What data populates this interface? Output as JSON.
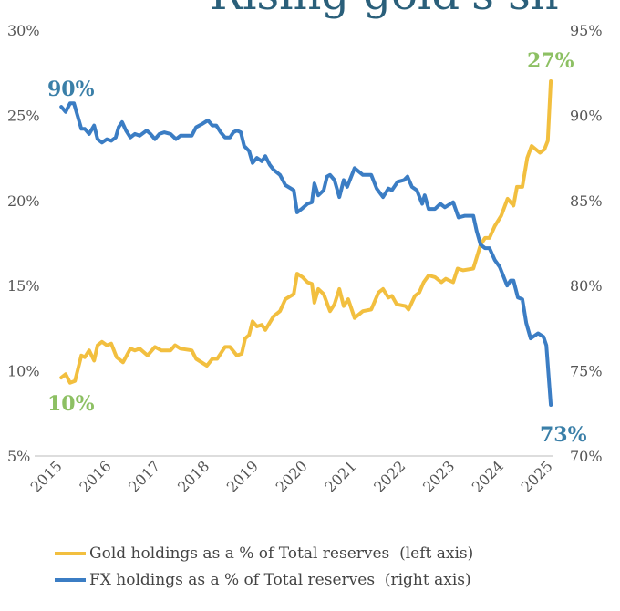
{
  "title": "Rising gold's sh",
  "chart_data": {
    "type": "line",
    "title": "Rising gold's sh",
    "x_range": [
      2015,
      2025
    ],
    "x_ticks": [
      "2015",
      "2016",
      "2017",
      "2018",
      "2019",
      "2020",
      "2021",
      "2022",
      "2023",
      "2024",
      "2025"
    ],
    "left_axis": {
      "range": [
        5,
        30
      ],
      "ticks": [
        "30%",
        "25%",
        "20%",
        "15%",
        "10%",
        "5%"
      ]
    },
    "right_axis": {
      "range": [
        70,
        95
      ],
      "ticks": [
        "95%",
        "90%",
        "85%",
        "80%",
        "75%",
        "70%"
      ]
    },
    "grid": false,
    "legend_position": "bottom",
    "series": [
      {
        "name": "Gold holdings as a % of Total reserves  (left axis)",
        "axis": "left",
        "color": "#f2bf3f",
        "x": [
          2015.04,
          2015.13,
          2015.22,
          2015.32,
          2015.45,
          2015.52,
          2015.61,
          2015.71,
          2015.78,
          2015.87,
          2015.97,
          2016.06,
          2016.17,
          2016.3,
          2016.45,
          2016.54,
          2016.64,
          2016.8,
          2016.95,
          2017.08,
          2017.27,
          2017.36,
          2017.47,
          2017.7,
          2017.79,
          2018.01,
          2018.12,
          2018.22,
          2018.38,
          2018.48,
          2018.62,
          2018.72,
          2018.79,
          2018.87,
          2018.94,
          2019.03,
          2019.13,
          2019.2,
          2019.37,
          2019.5,
          2019.61,
          2019.78,
          2019.85,
          2019.96,
          2020.06,
          2020.15,
          2020.2,
          2020.28,
          2020.39,
          2020.52,
          2020.61,
          2020.71,
          2020.8,
          2020.89,
          2021.02,
          2021.19,
          2021.36,
          2021.51,
          2021.6,
          2021.71,
          2021.78,
          2021.88,
          2022.06,
          2022.12,
          2022.25,
          2022.34,
          2022.43,
          2022.53,
          2022.66,
          2022.79,
          2022.88,
          2023.03,
          2023.12,
          2023.23,
          2023.44,
          2023.59,
          2023.68,
          2023.77,
          2023.88,
          2024.01,
          2024.14,
          2024.26,
          2024.33,
          2024.44,
          2024.54,
          2024.63,
          2024.8,
          2024.89,
          2024.96,
          2025.02
        ],
        "values": [
          9.6,
          9.8,
          9.3,
          9.4,
          10.9,
          10.8,
          11.2,
          10.6,
          11.5,
          11.7,
          11.5,
          11.6,
          10.8,
          10.5,
          11.3,
          11.2,
          11.3,
          10.9,
          11.4,
          11.2,
          11.2,
          11.5,
          11.3,
          11.2,
          10.7,
          10.3,
          10.7,
          10.7,
          11.4,
          11.4,
          10.9,
          11.0,
          11.9,
          12.1,
          12.9,
          12.6,
          12.7,
          12.4,
          13.2,
          13.5,
          14.2,
          14.5,
          15.7,
          15.5,
          15.2,
          15.1,
          14.0,
          14.8,
          14.5,
          13.5,
          13.9,
          14.8,
          13.8,
          14.2,
          13.1,
          13.5,
          13.6,
          14.6,
          14.8,
          14.3,
          14.4,
          13.9,
          13.8,
          13.6,
          14.4,
          14.6,
          15.2,
          15.6,
          15.5,
          15.2,
          15.4,
          15.2,
          16.0,
          15.9,
          16.0,
          17.4,
          17.8,
          17.8,
          18.5,
          19.1,
          20.1,
          19.7,
          20.8,
          20.8,
          22.5,
          23.2,
          22.8,
          23.0,
          23.5,
          27.0
        ]
      },
      {
        "name": "FX holdings as a % of Total reserves  (right axis)",
        "axis": "right",
        "color": "#3b7dc4",
        "x": [
          2015.04,
          2015.13,
          2015.22,
          2015.3,
          2015.37,
          2015.45,
          2015.52,
          2015.61,
          2015.71,
          2015.78,
          2015.87,
          2015.97,
          2016.06,
          2016.15,
          2016.21,
          2016.28,
          2016.36,
          2016.45,
          2016.54,
          2016.64,
          2016.78,
          2016.86,
          2016.95,
          2017.04,
          2017.14,
          2017.27,
          2017.38,
          2017.47,
          2017.7,
          2017.79,
          2017.92,
          2018.03,
          2018.12,
          2018.2,
          2018.29,
          2018.38,
          2018.48,
          2018.55,
          2018.62,
          2018.7,
          2018.77,
          2018.87,
          2018.94,
          2019.03,
          2019.13,
          2019.2,
          2019.29,
          2019.37,
          2019.5,
          2019.61,
          2019.78,
          2019.85,
          2019.94,
          2020.06,
          2020.15,
          2020.2,
          2020.28,
          2020.39,
          2020.46,
          2020.52,
          2020.61,
          2020.71,
          2020.8,
          2020.87,
          2021.02,
          2021.19,
          2021.36,
          2021.47,
          2021.6,
          2021.71,
          2021.78,
          2021.9,
          2022.03,
          2022.1,
          2022.19,
          2022.29,
          2022.4,
          2022.45,
          2022.53,
          2022.66,
          2022.77,
          2022.86,
          2023.03,
          2023.14,
          2023.27,
          2023.44,
          2023.51,
          2023.59,
          2023.68,
          2023.77,
          2023.88,
          2023.98,
          2024.13,
          2024.2,
          2024.26,
          2024.35,
          2024.44,
          2024.52,
          2024.61,
          2024.76,
          2024.87,
          2024.93,
          2025.02
        ],
        "values": [
          90.5,
          90.2,
          90.7,
          90.7,
          90.0,
          89.2,
          89.2,
          88.9,
          89.4,
          88.6,
          88.4,
          88.6,
          88.5,
          88.7,
          89.3,
          89.6,
          89.1,
          88.7,
          88.9,
          88.8,
          89.1,
          88.9,
          88.6,
          88.9,
          89.0,
          88.9,
          88.6,
          88.8,
          88.8,
          89.3,
          89.5,
          89.7,
          89.4,
          89.4,
          89.0,
          88.7,
          88.7,
          89.0,
          89.1,
          89.0,
          88.2,
          87.9,
          87.2,
          87.5,
          87.3,
          87.6,
          87.1,
          86.8,
          86.5,
          85.9,
          85.6,
          84.3,
          84.5,
          84.8,
          84.9,
          86.0,
          85.3,
          85.6,
          86.4,
          86.5,
          86.2,
          85.2,
          86.2,
          85.8,
          86.9,
          86.5,
          86.5,
          85.7,
          85.2,
          85.7,
          85.6,
          86.1,
          86.2,
          86.4,
          85.8,
          85.6,
          84.8,
          85.3,
          84.5,
          84.5,
          84.8,
          84.6,
          84.9,
          84.0,
          84.1,
          84.1,
          83.2,
          82.4,
          82.2,
          82.2,
          81.5,
          81.1,
          80.0,
          80.3,
          80.3,
          79.3,
          79.2,
          77.8,
          76.9,
          77.2,
          77.0,
          76.5,
          73.0
        ]
      }
    ],
    "annotations": [
      {
        "text": "90%",
        "color": "#3a7fa8"
      },
      {
        "text": "10%",
        "color": "#8dc063"
      },
      {
        "text": "27%",
        "color": "#8dc063"
      },
      {
        "text": "73%",
        "color": "#3a7fa8"
      }
    ]
  },
  "legend": [
    {
      "label": "Gold holdings as a % of Total reserves  (left axis)",
      "color": "#f2bf3f"
    },
    {
      "label": "FX holdings as a % of Total reserves  (right axis)",
      "color": "#3b7dc4"
    }
  ]
}
